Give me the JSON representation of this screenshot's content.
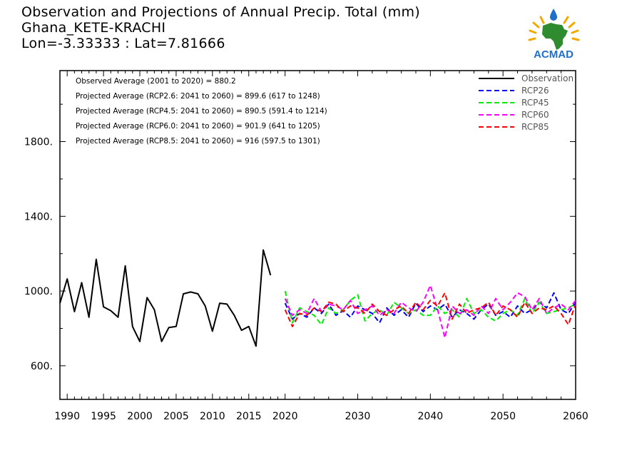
{
  "header": {
    "title": "Observation and Projections of Annual Precip. Total (mm)",
    "station": "Ghana_KETE-KRACHI",
    "coords": "Lon=-3.33333 : Lat=7.81666"
  },
  "logo": {
    "text": "ACMAD",
    "icon": "africa-map-logo-icon",
    "colors": {
      "land": "#2e8b2e",
      "sun": "#f2a900",
      "drop": "#1e6fc9",
      "text": "#1e6fc9"
    }
  },
  "stats": [
    "Observed Average (2001 to 2020) = 880.2",
    "Projected Average (RCP2.6: 2041 to 2060) = 899.6 (617 to 1248)",
    "Projected Average (RCP4.5: 2041 to 2060) = 890.5 (591.4 to 1214)",
    "Projected Average (RCP6.0: 2041 to 2060) = 901.9 (641 to 1205)",
    "Projected Average (RCP8.5: 2041 to 2060) = 916 (597.5 to 1301)"
  ],
  "chart_data": {
    "type": "line",
    "xlim": [
      1989,
      2060
    ],
    "ylim": [
      420,
      2180
    ],
    "x_ticks": [
      1990,
      1995,
      2000,
      2005,
      2010,
      2015,
      2020,
      2030,
      2040,
      2050,
      2060
    ],
    "x_tick_labels": [
      "1990",
      "1995",
      "2000",
      "2005",
      "2010",
      "2015",
      "2020",
      "2030",
      "2040",
      "2050",
      "2060"
    ],
    "y_ticks": [
      600,
      1000,
      1400,
      1800
    ],
    "y_tick_labels": [
      "600.",
      "1000.",
      "1400.",
      "1800."
    ],
    "legend_position": "top-right",
    "series": [
      {
        "name": "Observation",
        "color": "#000000",
        "dashed": false,
        "x": [
          1989,
          1990,
          1991,
          1992,
          1993,
          1994,
          1995,
          1996,
          1997,
          1998,
          1999,
          2000,
          2001,
          2002,
          2003,
          2004,
          2005,
          2006,
          2007,
          2008,
          2009,
          2010,
          2011,
          2012,
          2013,
          2014,
          2015,
          2016,
          2017,
          2018,
          2019
        ],
        "values": [
          935,
          1065,
          890,
          1045,
          860,
          1170,
          915,
          895,
          860,
          1135,
          810,
          730,
          965,
          900,
          730,
          805,
          810,
          985,
          995,
          985,
          920,
          785,
          935,
          930,
          870,
          790,
          810,
          705,
          1220,
          1085,
          null
        ]
      },
      {
        "name": "RCP26",
        "color": "#0000ff",
        "dashed": true,
        "x": [
          2020,
          2021,
          2022,
          2023,
          2024,
          2025,
          2026,
          2027,
          2028,
          2029,
          2030,
          2031,
          2032,
          2033,
          2034,
          2035,
          2036,
          2037,
          2038,
          2039,
          2040,
          2041,
          2042,
          2043,
          2044,
          2045,
          2046,
          2047,
          2048,
          2049,
          2050,
          2051,
          2052,
          2053,
          2054,
          2055,
          2056,
          2057,
          2058,
          2059,
          2060
        ],
        "values": [
          935,
          850,
          880,
          860,
          910,
          880,
          930,
          870,
          895,
          860,
          920,
          900,
          880,
          830,
          910,
          870,
          900,
          860,
          935,
          890,
          920,
          900,
          930,
          860,
          900,
          880,
          850,
          900,
          930,
          870,
          890,
          860,
          920,
          880,
          900,
          940,
          910,
          990,
          900,
          880,
          940
        ]
      },
      {
        "name": "RCP45",
        "color": "#00ee00",
        "dashed": true,
        "x": [
          2020,
          2021,
          2022,
          2023,
          2024,
          2025,
          2026,
          2027,
          2028,
          2029,
          2030,
          2031,
          2032,
          2033,
          2034,
          2035,
          2036,
          2037,
          2038,
          2039,
          2040,
          2041,
          2042,
          2043,
          2044,
          2045,
          2046,
          2047,
          2048,
          2049,
          2050,
          2051,
          2052,
          2053,
          2054,
          2055,
          2056,
          2057,
          2058,
          2059,
          2060
        ],
        "values": [
          1000,
          830,
          910,
          890,
          870,
          820,
          910,
          880,
          900,
          950,
          980,
          840,
          880,
          900,
          870,
          940,
          910,
          880,
          900,
          870,
          870,
          920,
          880,
          900,
          860,
          960,
          880,
          900,
          860,
          840,
          880,
          900,
          870,
          960,
          880,
          940,
          880,
          890,
          900,
          910,
          930
        ]
      },
      {
        "name": "RCP60",
        "color": "#ff00ff",
        "dashed": true,
        "x": [
          2020,
          2021,
          2022,
          2023,
          2024,
          2025,
          2026,
          2027,
          2028,
          2029,
          2030,
          2031,
          2032,
          2033,
          2034,
          2035,
          2036,
          2037,
          2038,
          2039,
          2040,
          2041,
          2042,
          2043,
          2044,
          2045,
          2046,
          2047,
          2048,
          2049,
          2050,
          2051,
          2052,
          2053,
          2054,
          2055,
          2056,
          2057,
          2058,
          2059,
          2060
        ],
        "values": [
          960,
          870,
          900,
          880,
          960,
          890,
          930,
          920,
          900,
          950,
          880,
          900,
          920,
          870,
          900,
          880,
          940,
          910,
          890,
          940,
          1030,
          900,
          750,
          920,
          880,
          900,
          870,
          920,
          880,
          960,
          900,
          940,
          990,
          970,
          900,
          960,
          880,
          910,
          930,
          900,
          950
        ]
      },
      {
        "name": "RCP85",
        "color": "#ff0000",
        "dashed": true,
        "x": [
          2020,
          2021,
          2022,
          2023,
          2024,
          2025,
          2026,
          2027,
          2028,
          2029,
          2030,
          2031,
          2032,
          2033,
          2034,
          2035,
          2036,
          2037,
          2038,
          2039,
          2040,
          2041,
          2042,
          2043,
          2044,
          2045,
          2046,
          2047,
          2048,
          2049,
          2050,
          2051,
          2052,
          2053,
          2054,
          2055,
          2056,
          2057,
          2058,
          2059,
          2060
        ],
        "values": [
          900,
          810,
          880,
          870,
          910,
          890,
          940,
          930,
          890,
          920,
          910,
          880,
          930,
          890,
          870,
          900,
          920,
          880,
          940,
          900,
          950,
          920,
          990,
          850,
          930,
          880,
          900,
          910,
          940,
          870,
          920,
          900,
          860,
          940,
          880,
          910,
          900,
          920,
          880,
          820,
          930
        ]
      }
    ]
  }
}
